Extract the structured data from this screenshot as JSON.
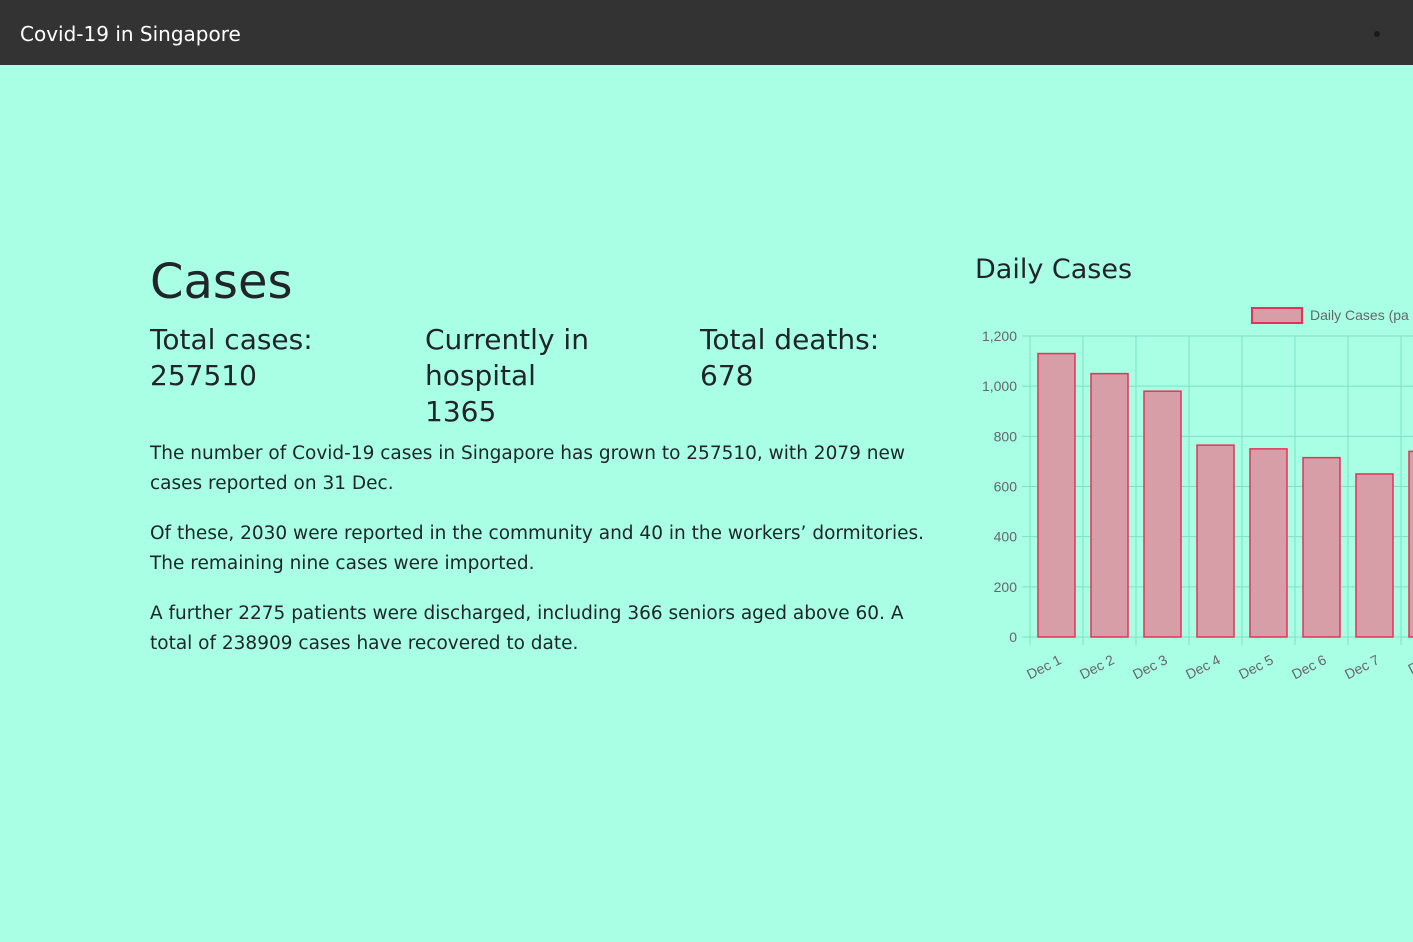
{
  "navbar": {
    "brand": "Covid-19 in Singapore"
  },
  "cases": {
    "heading": "Cases",
    "total_cases_label": "Total cases:",
    "total_cases_value": "257510",
    "hospital_label": "Currently in hospital",
    "hospital_value": "1365",
    "deaths_label": "Total deaths:",
    "deaths_value": "678",
    "paragraphs": [
      "The number of Covid-19 cases in Singapore has grown to 257510, with 2079 new cases reported on 31 Dec.",
      "Of these, 2030 were reported in the community and 40 in the workers’ dormitories. The remaining nine cases were imported.",
      "A further 2275 patients were discharged, including 366 seniors aged above 60. A total of 238909 cases have recovered to date."
    ]
  },
  "chart": {
    "heading": "Daily Cases",
    "legend_label": "Daily Cases (pa",
    "colors": {
      "bar_fill": "#d89ea7",
      "bar_border": "#e8315a",
      "grid": "#7ee0c2",
      "text": "#666666"
    }
  },
  "chart_data": {
    "type": "bar",
    "title": "Daily Cases",
    "categories": [
      "Dec 1",
      "Dec 2",
      "Dec 3",
      "Dec 4",
      "Dec 5",
      "Dec 6",
      "Dec 7",
      "Dec"
    ],
    "series": [
      {
        "name": "Daily Cases (pa",
        "values": [
          1130,
          1050,
          980,
          765,
          750,
          715,
          650,
          740
        ]
      }
    ],
    "ylim": [
      0,
      1200
    ],
    "yticks": [
      0,
      200,
      400,
      600,
      800,
      1000,
      1200
    ],
    "ytick_labels": [
      "0",
      "200",
      "400",
      "600",
      "800",
      "1,000",
      "1,200"
    ],
    "grid": true,
    "legend_position": "top"
  }
}
